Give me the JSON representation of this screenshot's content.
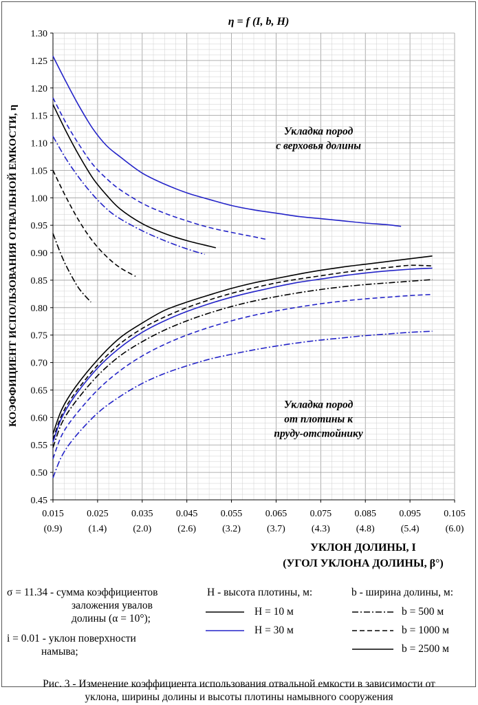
{
  "chart_data": {
    "type": "line",
    "title": "η = f (I, b, H)",
    "xlabel": "УКЛОН ДОЛИНЫ, I",
    "xlabel2": "(УГОЛ УКЛОНА ДОЛИНЫ, β°)",
    "ylabel": "КОЭФФИЦИЕНТ ИСПОЛЬЗОВАНИЯ ОТВАЛЬНОЙ ЕМКОСТИ, η",
    "xlim": [
      0.015,
      0.105
    ],
    "ylim": [
      0.45,
      1.3
    ],
    "grid": true,
    "xticks": [
      {
        "value": 0.015,
        "label": "0.015",
        "sub": "(0.9)"
      },
      {
        "value": 0.025,
        "label": "0.025",
        "sub": "(1.4)"
      },
      {
        "value": 0.035,
        "label": "0.035",
        "sub": "(2.0)"
      },
      {
        "value": 0.045,
        "label": "0.045",
        "sub": "(2.6)"
      },
      {
        "value": 0.055,
        "label": "0.055",
        "sub": "(3.2)"
      },
      {
        "value": 0.065,
        "label": "0.065",
        "sub": "(3.7)"
      },
      {
        "value": 0.075,
        "label": "0.075",
        "sub": "(4.3)"
      },
      {
        "value": 0.085,
        "label": "0.085",
        "sub": "(4.8)"
      },
      {
        "value": 0.095,
        "label": "0.095",
        "sub": "(5.4)"
      },
      {
        "value": 0.105,
        "label": "0.105",
        "sub": "(6.0)"
      }
    ],
    "yticks": [
      "0.45",
      "0.50",
      "0.55",
      "0.60",
      "0.65",
      "0.70",
      "0.75",
      "0.80",
      "0.85",
      "0.90",
      "0.95",
      "1.00",
      "1.05",
      "1.10",
      "1.15",
      "1.20",
      "1.25",
      "1.30"
    ],
    "annotations": [
      {
        "lines": [
          "Укладка пород",
          "с верховья долины"
        ],
        "x": 0.0745,
        "y": 1.115
      },
      {
        "lines": [
          "Укладка пород",
          "от плотины к",
          "пруду-отстойнику"
        ],
        "x": 0.0745,
        "y": 0.6175
      }
    ],
    "series": [
      {
        "group": "upper",
        "H": "10 м",
        "b": "2500 м",
        "color": "#000000",
        "dash": "solid",
        "x": [
          0.015,
          0.018,
          0.021,
          0.024,
          0.027,
          0.03,
          0.035,
          0.04,
          0.045,
          0.05,
          0.0515
        ],
        "y": [
          1.17,
          1.12,
          1.075,
          1.035,
          1.005,
          0.98,
          0.953,
          0.935,
          0.922,
          0.912,
          0.909
        ]
      },
      {
        "group": "upper",
        "H": "30 м",
        "b": "2500 м",
        "color": "#2323c8",
        "dash": "solid",
        "x": [
          0.015,
          0.018,
          0.021,
          0.024,
          0.027,
          0.03,
          0.035,
          0.04,
          0.045,
          0.05,
          0.055,
          0.06,
          0.065,
          0.07,
          0.075,
          0.08,
          0.085,
          0.09,
          0.093
        ],
        "y": [
          1.258,
          1.21,
          1.165,
          1.125,
          1.095,
          1.075,
          1.045,
          1.025,
          1.009,
          0.997,
          0.986,
          0.978,
          0.972,
          0.966,
          0.962,
          0.958,
          0.954,
          0.951,
          0.948
        ]
      },
      {
        "group": "upper",
        "H": "30 м",
        "b": "1000 м",
        "color": "#2323c8",
        "dash": "dash",
        "x": [
          0.015,
          0.018,
          0.021,
          0.024,
          0.027,
          0.03,
          0.035,
          0.04,
          0.045,
          0.05,
          0.055,
          0.06,
          0.063
        ],
        "y": [
          1.182,
          1.135,
          1.095,
          1.06,
          1.035,
          1.015,
          0.99,
          0.972,
          0.958,
          0.946,
          0.937,
          0.929,
          0.924
        ]
      },
      {
        "group": "upper",
        "H": "30 м",
        "b": "500 м",
        "color": "#2323c8",
        "dash": "dashdot",
        "x": [
          0.015,
          0.018,
          0.021,
          0.024,
          0.027,
          0.03,
          0.035,
          0.04,
          0.045,
          0.049
        ],
        "y": [
          1.112,
          1.07,
          1.035,
          1.005,
          0.98,
          0.962,
          0.94,
          0.922,
          0.907,
          0.897
        ]
      },
      {
        "group": "upper",
        "H": "10 м",
        "b": "1000 м",
        "color": "#000000",
        "dash": "dash",
        "x": [
          0.015,
          0.018,
          0.021,
          0.024,
          0.027,
          0.03,
          0.0335
        ],
        "y": [
          1.05,
          1.0,
          0.956,
          0.92,
          0.893,
          0.873,
          0.857
        ]
      },
      {
        "group": "upper",
        "H": "10 м",
        "b": "500 м",
        "color": "#000000",
        "dash": "dashdot",
        "x": [
          0.015,
          0.017,
          0.019,
          0.021,
          0.0235
        ],
        "y": [
          0.935,
          0.893,
          0.86,
          0.833,
          0.81
        ]
      },
      {
        "group": "lower",
        "H": "10 м",
        "b": "2500 м",
        "color": "#000000",
        "dash": "solid",
        "x": [
          0.015,
          0.017,
          0.02,
          0.025,
          0.03,
          0.035,
          0.04,
          0.045,
          0.05,
          0.055,
          0.06,
          0.065,
          0.07,
          0.075,
          0.08,
          0.085,
          0.09,
          0.095,
          0.1
        ],
        "y": [
          0.57,
          0.615,
          0.655,
          0.705,
          0.745,
          0.772,
          0.795,
          0.81,
          0.823,
          0.835,
          0.845,
          0.853,
          0.861,
          0.868,
          0.874,
          0.879,
          0.884,
          0.889,
          0.894
        ]
      },
      {
        "group": "lower",
        "H": "10 м",
        "b": "1000 м",
        "color": "#000000",
        "dash": "dash",
        "x": [
          0.015,
          0.017,
          0.02,
          0.025,
          0.03,
          0.035,
          0.04,
          0.045,
          0.05,
          0.055,
          0.06,
          0.065,
          0.07,
          0.075,
          0.08,
          0.085,
          0.09,
          0.095,
          0.1
        ],
        "y": [
          0.56,
          0.605,
          0.645,
          0.695,
          0.734,
          0.762,
          0.783,
          0.8,
          0.814,
          0.826,
          0.836,
          0.845,
          0.852,
          0.858,
          0.864,
          0.869,
          0.873,
          0.877,
          0.876
        ]
      },
      {
        "group": "lower",
        "H": "30 м",
        "b": "2500 м",
        "color": "#2323c8",
        "dash": "solid",
        "x": [
          0.015,
          0.017,
          0.02,
          0.025,
          0.03,
          0.035,
          0.04,
          0.045,
          0.05,
          0.055,
          0.06,
          0.065,
          0.07,
          0.075,
          0.08,
          0.085,
          0.09,
          0.095,
          0.1
        ],
        "y": [
          0.555,
          0.6,
          0.64,
          0.69,
          0.727,
          0.755,
          0.776,
          0.793,
          0.807,
          0.819,
          0.829,
          0.838,
          0.846,
          0.852,
          0.858,
          0.863,
          0.867,
          0.87,
          0.872
        ]
      },
      {
        "group": "lower",
        "H": "10 м",
        "b": "500 м",
        "color": "#000000",
        "dash": "dashdot",
        "x": [
          0.015,
          0.017,
          0.02,
          0.025,
          0.03,
          0.035,
          0.04,
          0.045,
          0.05,
          0.055,
          0.06,
          0.065,
          0.07,
          0.075,
          0.08,
          0.085,
          0.09,
          0.095,
          0.1
        ],
        "y": [
          0.545,
          0.59,
          0.628,
          0.676,
          0.712,
          0.738,
          0.759,
          0.776,
          0.79,
          0.802,
          0.812,
          0.82,
          0.827,
          0.833,
          0.838,
          0.842,
          0.845,
          0.848,
          0.851
        ]
      },
      {
        "group": "lower",
        "H": "30 м",
        "b": "1000 м",
        "color": "#2323c8",
        "dash": "dash",
        "x": [
          0.015,
          0.017,
          0.02,
          0.025,
          0.03,
          0.035,
          0.04,
          0.045,
          0.05,
          0.055,
          0.06,
          0.065,
          0.07,
          0.075,
          0.08,
          0.085,
          0.09,
          0.095,
          0.1
        ],
        "y": [
          0.525,
          0.568,
          0.604,
          0.65,
          0.685,
          0.712,
          0.733,
          0.75,
          0.764,
          0.776,
          0.786,
          0.794,
          0.801,
          0.807,
          0.812,
          0.816,
          0.819,
          0.822,
          0.824
        ]
      },
      {
        "group": "lower",
        "H": "30 м",
        "b": "500 м",
        "color": "#2323c8",
        "dash": "dashdot",
        "x": [
          0.015,
          0.017,
          0.02,
          0.025,
          0.03,
          0.035,
          0.04,
          0.045,
          0.05,
          0.055,
          0.06,
          0.065,
          0.07,
          0.075,
          0.08,
          0.085,
          0.09,
          0.095,
          0.1
        ],
        "y": [
          0.49,
          0.53,
          0.565,
          0.608,
          0.638,
          0.662,
          0.68,
          0.694,
          0.706,
          0.715,
          0.723,
          0.73,
          0.736,
          0.741,
          0.745,
          0.749,
          0.752,
          0.755,
          0.757
        ]
      }
    ]
  },
  "legend": {
    "sigma_line1": "σ = 11.34 - сумма коэффициентов",
    "sigma_line2": "заложения увалов",
    "sigma_line3": "долины (α = 10°);",
    "i_line1": "i = 0.01 - уклон поверхности",
    "i_line2": "намыва;",
    "h_title": "H - высота плотины, м:",
    "h_items": [
      "H = 10 м",
      "H = 30 м"
    ],
    "b_title": "b - ширина долины, м:",
    "b_items": [
      "b = 500 м",
      "b = 1000 м",
      "b = 2500 м"
    ],
    "colors": {
      "black": "#000000",
      "blue": "#2323c8"
    }
  },
  "caption": {
    "line1": "Рис. 3 - Изменение коэффициента использования отвальной емкости в зависимости от",
    "line2": "уклона, ширины долины и высоты плотины намывного сооружения"
  }
}
